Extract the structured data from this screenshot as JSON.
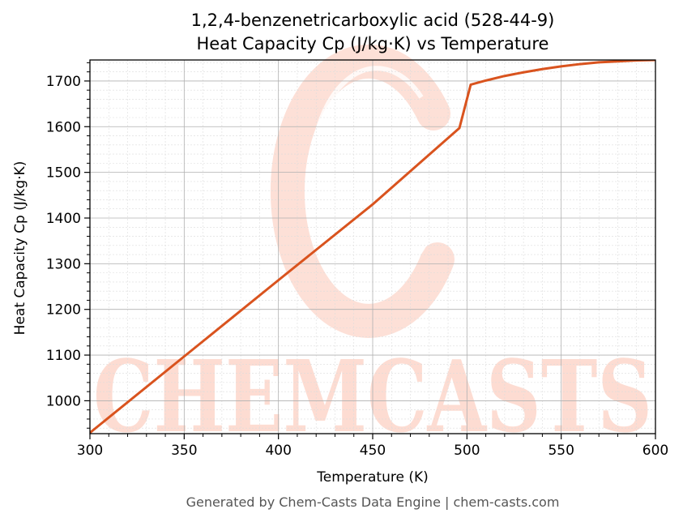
{
  "chart_data": {
    "type": "line",
    "title_line1": "1,2,4-benzenetricarboxylic acid (528-44-9)",
    "title_line2": "Heat Capacity Cp (J/kg·K) vs Temperature",
    "xlabel": "Temperature (K)",
    "ylabel": "Heat Capacity Cp (J/kg·K)",
    "xlim": [
      300,
      600
    ],
    "ylim": [
      928,
      1746
    ],
    "xticks": [
      300,
      350,
      400,
      450,
      500,
      550,
      600
    ],
    "yticks": [
      1000,
      1100,
      1200,
      1300,
      1400,
      1500,
      1600,
      1700
    ],
    "x_minor_step": 10,
    "y_minor_step": 20,
    "grid": true,
    "line_color": "#d9531e",
    "series": [
      {
        "x": [
          300,
          350,
          400,
          450,
          496,
          502,
          510,
          520,
          530,
          540,
          550,
          560,
          570,
          580,
          590,
          600
        ],
        "y": [
          930,
          1097,
          1264,
          1430,
          1597,
          1692,
          1701,
          1711,
          1719,
          1726,
          1732,
          1737,
          1741,
          1743,
          1745,
          1746
        ]
      }
    ]
  },
  "watermark": {
    "text": "CHEMCASTS",
    "color": "#fdd9cf"
  },
  "footer": "Generated by Chem-Casts Data Engine | chem-casts.com"
}
